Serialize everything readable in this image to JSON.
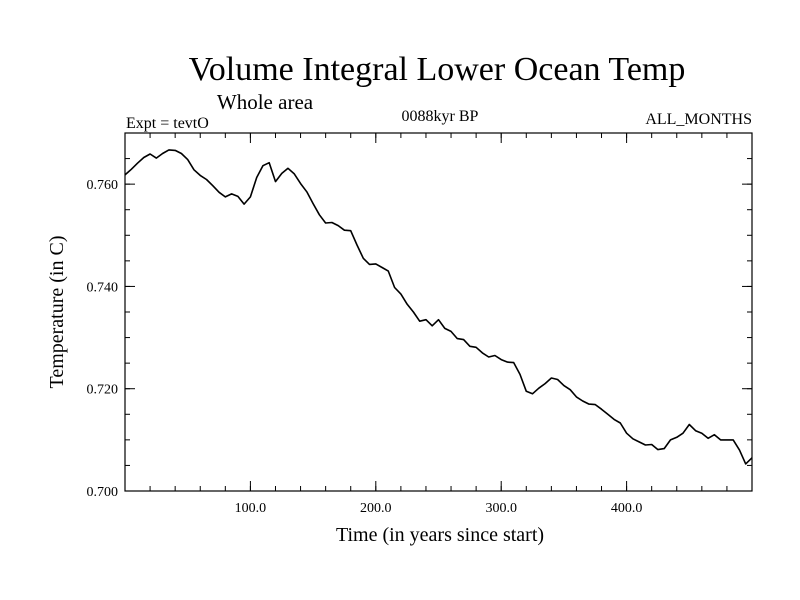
{
  "chart_data": {
    "type": "line",
    "title": "Volume Integral Lower Ocean Temp",
    "subtitle": "Whole area",
    "info_left": "Expt = tevtO",
    "info_center": "0088kyr BP",
    "info_right": "ALL_MONTHS",
    "xlabel": "Time (in years since start)",
    "ylabel": "Temperature (in C)",
    "xlim": [
      0,
      500
    ],
    "ylim": [
      0.7,
      0.77
    ],
    "xticks": [
      {
        "value": 100,
        "label": "100.0"
      },
      {
        "value": 200,
        "label": "200.0"
      },
      {
        "value": 300,
        "label": "300.0"
      },
      {
        "value": 400,
        "label": "400.0"
      }
    ],
    "yticks": [
      {
        "value": 0.7,
        "label": "0.700"
      },
      {
        "value": 0.72,
        "label": "0.720"
      },
      {
        "value": 0.74,
        "label": "0.740"
      },
      {
        "value": 0.76,
        "label": "0.760"
      }
    ],
    "grid": false,
    "series": [
      {
        "color": "#000000",
        "x": [
          0,
          5,
          10,
          15,
          20,
          25,
          30,
          35,
          40,
          45,
          50,
          55,
          60,
          65,
          70,
          75,
          80,
          85,
          90,
          95,
          100,
          105,
          110,
          115,
          120,
          125,
          130,
          135,
          140,
          145,
          150,
          155,
          160,
          165,
          170,
          175,
          180,
          185,
          190,
          195,
          200,
          205,
          210,
          215,
          220,
          225,
          230,
          235,
          240,
          245,
          250,
          255,
          260,
          265,
          270,
          275,
          280,
          285,
          290,
          295,
          300,
          305,
          310,
          315,
          320,
          325,
          330,
          335,
          340,
          345,
          350,
          355,
          360,
          365,
          370,
          375,
          380,
          385,
          390,
          395,
          400,
          405,
          410,
          415,
          420,
          425,
          430,
          435,
          440,
          445,
          450,
          455,
          460,
          465,
          470,
          475,
          480,
          485,
          490,
          495,
          500
        ],
        "y": [
          0.7618,
          0.7629,
          0.7641,
          0.7652,
          0.7659,
          0.7651,
          0.766,
          0.7667,
          0.7666,
          0.766,
          0.7648,
          0.7628,
          0.7617,
          0.7609,
          0.7597,
          0.7584,
          0.7575,
          0.7581,
          0.7576,
          0.7561,
          0.7575,
          0.7613,
          0.7636,
          0.7642,
          0.7605,
          0.7621,
          0.7631,
          0.762,
          0.7601,
          0.7585,
          0.7562,
          0.754,
          0.7524,
          0.7525,
          0.7519,
          0.751,
          0.7509,
          0.7481,
          0.7455,
          0.7443,
          0.7444,
          0.7437,
          0.743,
          0.7398,
          0.7385,
          0.7365,
          0.735,
          0.7332,
          0.7335,
          0.7323,
          0.7335,
          0.7318,
          0.7312,
          0.7298,
          0.7296,
          0.7283,
          0.7281,
          0.727,
          0.7262,
          0.7265,
          0.7257,
          0.7252,
          0.7251,
          0.7228,
          0.7195,
          0.719,
          0.7201,
          0.721,
          0.7221,
          0.7218,
          0.7206,
          0.7198,
          0.7184,
          0.7176,
          0.717,
          0.7169,
          0.716,
          0.715,
          0.714,
          0.7133,
          0.7113,
          0.7102,
          0.7096,
          0.709,
          0.7091,
          0.7081,
          0.7083,
          0.71,
          0.7105,
          0.7113,
          0.713,
          0.7118,
          0.7113,
          0.7103,
          0.711,
          0.71,
          0.71,
          0.71,
          0.708,
          0.7053,
          0.7065
        ]
      }
    ]
  }
}
